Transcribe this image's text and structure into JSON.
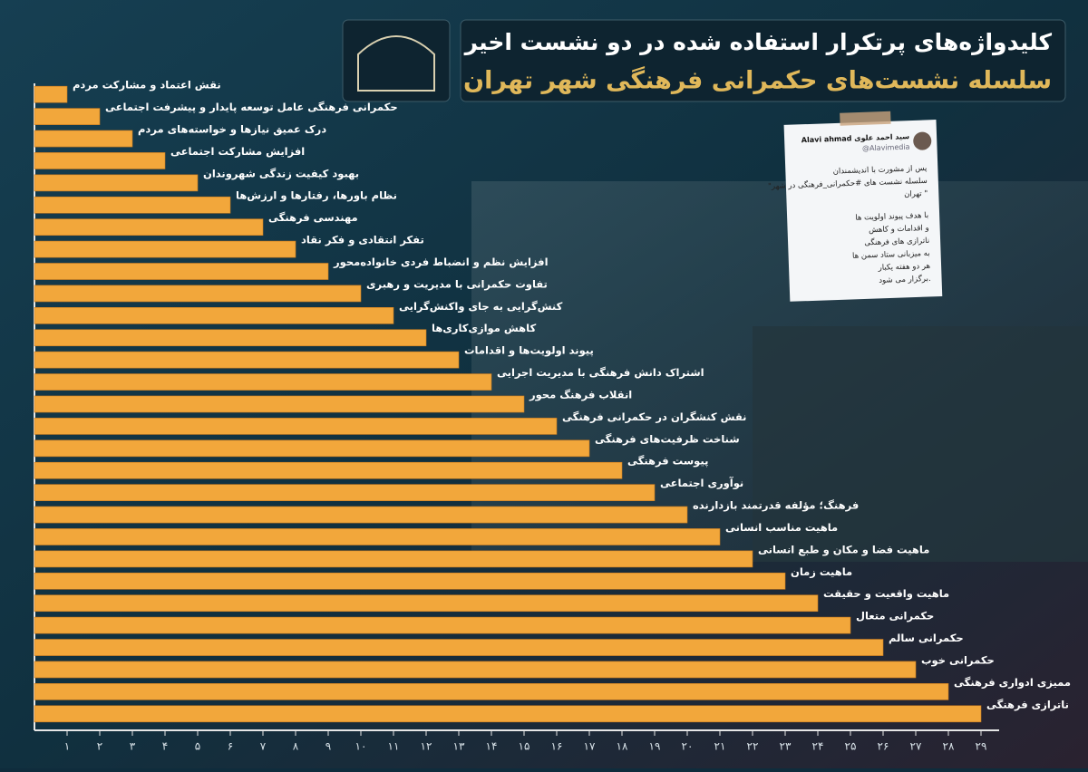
{
  "chart_data": {
    "type": "hbar",
    "title": "کلیدواژه‌های پرتکرار استفاده شده در دو نشست اخیر",
    "subtitle": "سلسله نشست‌های حکمرانی فرهنگی شهر تهران",
    "categories": [
      "نقش اعتماد و مشارکت مردم",
      "حکمرانی فرهنگی عامل توسعه پایدار و پیشرفت اجتماعی",
      "درک عمیق نیازها و خواسته‌های مردم",
      "افزایش مشارکت اجتماعی",
      "بهبود کیفیت زندگی شهروندان",
      "نظام باورها، رفتارها و ارزش‌ها",
      "مهندسی فرهنگی",
      "تفکر انتقادی و فکر نقاد",
      "افزایش نظم و انضباط فردی خانواده‌محور",
      "تفاوت حکمرانی با مدیریت و رهبری",
      "کنش‌گرایی به جای واکنش‌گرایی",
      "کاهش موازی‌کاری‌ها",
      "پیوند اولویت‌ها و اقدامات",
      "اشتراک دانش فرهنگی با مدیریت اجرایی",
      "انقلاب فرهنگ محور",
      "نقش کنشگران در حکمرانی فرهنگی",
      "شناخت ظرفیت‌های فرهنگی",
      "پیوست فرهنگی",
      "نوآوری اجتماعی",
      "فرهنگ؛ مؤلفه قدرتمند بازدارنده",
      "ماهیت مناسب انسانی",
      "ماهیت فضا و مکان و طبع انسانی",
      "ماهیت زمان",
      "ماهیت واقعیت و حقیقت",
      "حکمرانی متعال",
      "حکمرانی سالم",
      "حکمرانی خوب",
      "ممیزی ادواری فرهنگی",
      "ناترازی فرهنگی"
    ],
    "values": [
      1,
      2,
      3,
      4,
      5,
      6,
      7,
      8,
      9,
      10,
      11,
      12,
      13,
      14,
      15,
      16,
      17,
      18,
      19,
      20,
      21,
      22,
      23,
      24,
      25,
      26,
      27,
      28,
      29
    ],
    "color": "#f2a73b",
    "xlim": [
      0,
      29
    ],
    "xticks": [
      {
        "value": 1,
        "label": "۱"
      },
      {
        "value": 2,
        "label": "۲"
      },
      {
        "value": 3,
        "label": "۳"
      },
      {
        "value": 4,
        "label": "۴"
      },
      {
        "value": 5,
        "label": "۵"
      },
      {
        "value": 6,
        "label": "۶"
      },
      {
        "value": 7,
        "label": "۷"
      },
      {
        "value": 8,
        "label": "۸"
      },
      {
        "value": 9,
        "label": "۹"
      },
      {
        "value": 10,
        "label": "۱۰"
      },
      {
        "value": 11,
        "label": "۱۱"
      },
      {
        "value": 12,
        "label": "۱۲"
      },
      {
        "value": 13,
        "label": "۱۳"
      },
      {
        "value": 14,
        "label": "۱۴"
      },
      {
        "value": 15,
        "label": "۱۵"
      },
      {
        "value": 16,
        "label": "۱۶"
      },
      {
        "value": 17,
        "label": "۱۷"
      },
      {
        "value": 18,
        "label": "۱۸"
      },
      {
        "value": 19,
        "label": "۱۹"
      },
      {
        "value": 20,
        "label": "۲۰"
      },
      {
        "value": 21,
        "label": "۲۱"
      },
      {
        "value": 22,
        "label": "۲۲"
      },
      {
        "value": 23,
        "label": "۲۳"
      },
      {
        "value": 24,
        "label": "۲۴"
      },
      {
        "value": 25,
        "label": "۲۵"
      },
      {
        "value": 26,
        "label": "۲۶"
      },
      {
        "value": 27,
        "label": "۲۷"
      },
      {
        "value": 28,
        "label": "۲۸"
      },
      {
        "value": 29,
        "label": "۲۹"
      }
    ]
  },
  "tweet": {
    "name_fa": "سید احمد علوی",
    "name_en": "Alavi ahmad",
    "handle": "@Alavimedia",
    "lines": [
      "پس از مشورت با اندیشمندان",
      "\"سلسله نشست های #حکمرانی_فرهنگی در شهر",
      "تهران \"",
      "با هدف پیوند اولویت ها",
      "و اقدامات و کاهش",
      "ناترازی های فرهنگی",
      "به میزبانی ستاد سمن ها",
      "هر دو هفته یکبار",
      "برگزار می شود."
    ]
  }
}
